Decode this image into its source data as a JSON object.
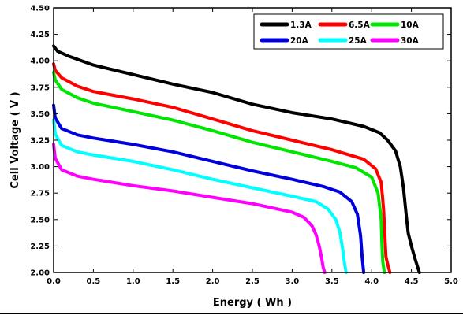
{
  "chart_data": {
    "type": "line",
    "title": "",
    "xlabel": "Energy  ( Wh )",
    "ylabel": "Cell Voltage  ( V )",
    "xlim": [
      0,
      5
    ],
    "ylim": [
      2.0,
      4.5
    ],
    "xticks": [
      "0.0",
      "0.5",
      "1.0",
      "1.5",
      "2.0",
      "2.5",
      "3.0",
      "3.5",
      "4.0",
      "4.5",
      "5.0"
    ],
    "yticks": [
      "2.00",
      "2.25",
      "2.50",
      "2.75",
      "3.00",
      "3.25",
      "3.50",
      "3.75",
      "4.00",
      "4.25",
      "4.50"
    ],
    "grid": false,
    "legend_position": "top-right",
    "series": [
      {
        "name": "1.3A",
        "color": "#000000",
        "x": [
          0.0,
          0.05,
          0.2,
          0.5,
          1.0,
          1.5,
          2.0,
          2.5,
          3.0,
          3.5,
          3.9,
          4.1,
          4.2,
          4.3,
          4.36,
          4.4,
          4.44,
          4.46,
          4.5,
          4.55,
          4.6
        ],
        "y": [
          4.14,
          4.09,
          4.04,
          3.96,
          3.87,
          3.78,
          3.7,
          3.59,
          3.51,
          3.45,
          3.38,
          3.32,
          3.25,
          3.15,
          3.0,
          2.8,
          2.5,
          2.37,
          2.25,
          2.12,
          2.0
        ]
      },
      {
        "name": "6.5A",
        "color": "#ff0000",
        "x": [
          0.0,
          0.02,
          0.1,
          0.3,
          0.5,
          1.0,
          1.5,
          2.0,
          2.5,
          3.0,
          3.5,
          3.9,
          4.05,
          4.12,
          4.15,
          4.17,
          4.18,
          4.2,
          4.23
        ],
        "y": [
          3.97,
          3.91,
          3.84,
          3.76,
          3.71,
          3.64,
          3.56,
          3.45,
          3.34,
          3.25,
          3.16,
          3.07,
          2.98,
          2.85,
          2.6,
          2.3,
          2.15,
          2.08,
          2.0
        ]
      },
      {
        "name": "10A",
        "color": "#00e600",
        "x": [
          0.0,
          0.02,
          0.1,
          0.3,
          0.5,
          1.0,
          1.5,
          2.0,
          2.5,
          3.0,
          3.5,
          3.8,
          4.0,
          4.08,
          4.12,
          4.13,
          4.14,
          4.16
        ],
        "y": [
          3.89,
          3.82,
          3.73,
          3.65,
          3.6,
          3.52,
          3.44,
          3.34,
          3.23,
          3.14,
          3.05,
          2.99,
          2.9,
          2.75,
          2.5,
          2.25,
          2.1,
          2.0
        ]
      },
      {
        "name": "20A",
        "color": "#0000dd",
        "x": [
          0.0,
          0.02,
          0.1,
          0.3,
          0.5,
          1.0,
          1.5,
          2.0,
          2.5,
          3.0,
          3.4,
          3.6,
          3.75,
          3.82,
          3.86,
          3.88,
          3.9
        ],
        "y": [
          3.58,
          3.46,
          3.36,
          3.3,
          3.27,
          3.21,
          3.14,
          3.05,
          2.96,
          2.88,
          2.81,
          2.76,
          2.67,
          2.55,
          2.35,
          2.15,
          2.0
        ]
      },
      {
        "name": "25A",
        "color": "#00ffff",
        "x": [
          0.0,
          0.02,
          0.1,
          0.3,
          0.5,
          1.0,
          1.5,
          2.0,
          2.5,
          3.0,
          3.3,
          3.45,
          3.55,
          3.6,
          3.64,
          3.66,
          3.68
        ],
        "y": [
          3.44,
          3.31,
          3.2,
          3.14,
          3.11,
          3.05,
          2.97,
          2.88,
          2.8,
          2.72,
          2.67,
          2.6,
          2.5,
          2.38,
          2.2,
          2.08,
          2.0
        ]
      },
      {
        "name": "30A",
        "color": "#ff00ff",
        "x": [
          0.0,
          0.02,
          0.1,
          0.3,
          0.5,
          1.0,
          1.5,
          2.0,
          2.5,
          3.0,
          3.15,
          3.25,
          3.3,
          3.34,
          3.37,
          3.39,
          3.41
        ],
        "y": [
          3.21,
          3.08,
          2.97,
          2.91,
          2.88,
          2.82,
          2.77,
          2.71,
          2.65,
          2.57,
          2.52,
          2.44,
          2.36,
          2.25,
          2.14,
          2.05,
          2.0
        ]
      }
    ]
  }
}
